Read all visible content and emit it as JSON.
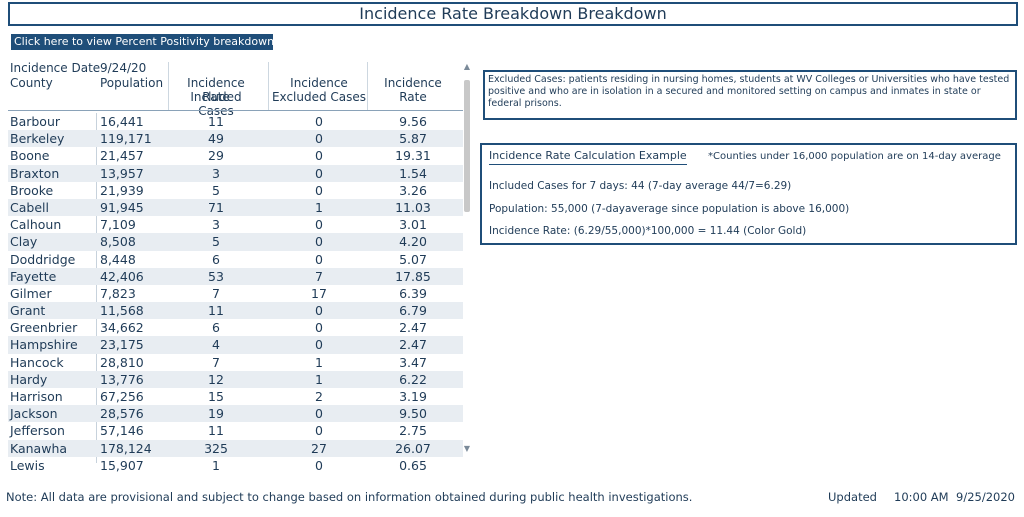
{
  "page": {
    "title": "Incidence Rate Breakdown Breakdown",
    "percent_positivity_button": "Click here to view Percent Positivity breakdown"
  },
  "table": {
    "headers": {
      "date_label": "Incidence Date",
      "date_value": "9/24/20",
      "county": "County",
      "population": "Population",
      "included_1": "Incidence Rate",
      "included_2": "Included Cases",
      "excluded_1": "Incidence",
      "excluded_2": "Excluded Cases",
      "rate": "Incidence Rate"
    },
    "rows": [
      {
        "county": "Barbour",
        "population": "16,441",
        "included": "11",
        "excluded": "0",
        "rate": "9.56"
      },
      {
        "county": "Berkeley",
        "population": "119,171",
        "included": "49",
        "excluded": "0",
        "rate": "5.87"
      },
      {
        "county": "Boone",
        "population": "21,457",
        "included": "29",
        "excluded": "0",
        "rate": "19.31"
      },
      {
        "county": "Braxton",
        "population": "13,957",
        "included": "3",
        "excluded": "0",
        "rate": "1.54"
      },
      {
        "county": "Brooke",
        "population": "21,939",
        "included": "5",
        "excluded": "0",
        "rate": "3.26"
      },
      {
        "county": "Cabell",
        "population": "91,945",
        "included": "71",
        "excluded": "1",
        "rate": "11.03"
      },
      {
        "county": "Calhoun",
        "population": "7,109",
        "included": "3",
        "excluded": "0",
        "rate": "3.01"
      },
      {
        "county": "Clay",
        "population": "8,508",
        "included": "5",
        "excluded": "0",
        "rate": "4.20"
      },
      {
        "county": "Doddridge",
        "population": "8,448",
        "included": "6",
        "excluded": "0",
        "rate": "5.07"
      },
      {
        "county": "Fayette",
        "population": "42,406",
        "included": "53",
        "excluded": "7",
        "rate": "17.85"
      },
      {
        "county": "Gilmer",
        "population": "7,823",
        "included": "7",
        "excluded": "17",
        "rate": "6.39"
      },
      {
        "county": "Grant",
        "population": "11,568",
        "included": "11",
        "excluded": "0",
        "rate": "6.79"
      },
      {
        "county": "Greenbrier",
        "population": "34,662",
        "included": "6",
        "excluded": "0",
        "rate": "2.47"
      },
      {
        "county": "Hampshire",
        "population": "23,175",
        "included": "4",
        "excluded": "0",
        "rate": "2.47"
      },
      {
        "county": "Hancock",
        "population": "28,810",
        "included": "7",
        "excluded": "1",
        "rate": "3.47"
      },
      {
        "county": "Hardy",
        "population": "13,776",
        "included": "12",
        "excluded": "1",
        "rate": "6.22"
      },
      {
        "county": "Harrison",
        "population": "67,256",
        "included": "15",
        "excluded": "2",
        "rate": "3.19"
      },
      {
        "county": "Jackson",
        "population": "28,576",
        "included": "19",
        "excluded": "0",
        "rate": "9.50"
      },
      {
        "county": "Jefferson",
        "population": "57,146",
        "included": "11",
        "excluded": "0",
        "rate": "2.75"
      },
      {
        "county": "Kanawha",
        "population": "178,124",
        "included": "325",
        "excluded": "27",
        "rate": "26.07"
      },
      {
        "county": "Lewis",
        "population": "15,907",
        "included": "1",
        "excluded": "0",
        "rate": "0.65"
      }
    ]
  },
  "excluded_cases": {
    "text": "Excluded Cases: patients residing in nursing homes, students at WV Colleges or Universities who have tested positive and who are in isolation in a secured and monitored setting on campus and inmates in state or federal prisons."
  },
  "calculation": {
    "title": "Incidence Rate Calculation Example",
    "note": "*Counties under 16,000 population are on 14-day average",
    "line1": "Included Cases for 7 days: 44 (7-day average 44/7=6.29)",
    "line2": "Population: 55,000 (7-dayaverage since population is above 16,000)",
    "line3": "Incidence Rate: (6.29/55,000)*100,000 = 11.44 (Color Gold)"
  },
  "footer": {
    "note": "Note: All data are provisional and subject to change based on information obtained during public health investigations.",
    "updated_label": "Updated",
    "updated_time": "10:00 AM",
    "updated_date": "9/25/2020"
  },
  "icons": {
    "scroll_up": "scroll-up-arrow-icon",
    "scroll_down": "scroll-down-arrow-icon"
  },
  "colors": {
    "accent": "#1f4e79",
    "text": "#1f3b57",
    "row_alt": "#e8edf2"
  }
}
